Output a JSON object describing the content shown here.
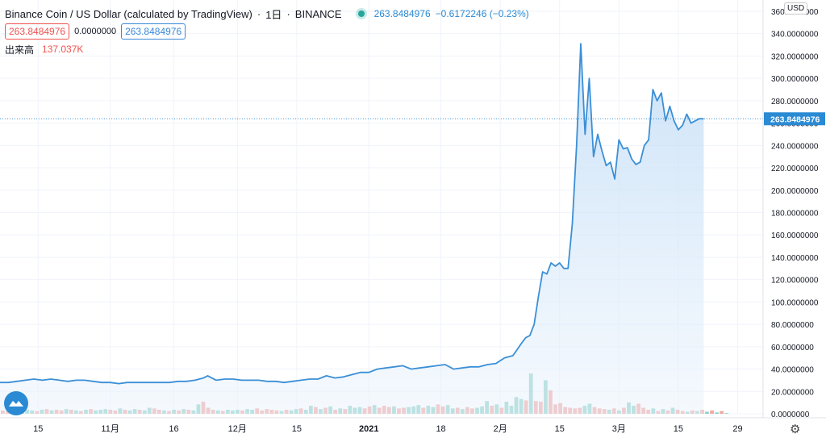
{
  "header": {
    "title": "Binance Coin / US Dollar (calculated by TradingView)",
    "interval": "1日",
    "exchange": "BINANCE",
    "last_price": "263.8484976",
    "change": "−0.6172246 (−0.23%)",
    "sell_price": "263.8484976",
    "spread": "0.0000000",
    "buy_price": "263.8484976",
    "volume_label": "出来高",
    "volume_value": "137.037K"
  },
  "currency": "USD",
  "price_marker": "263.8484976",
  "colors": {
    "line": "#3b8fd6",
    "fill": "#d6e8f8",
    "vol_up": "#8fd0c8",
    "vol_down": "#f2a7a4",
    "up_text": "#2a8ad4",
    "down_text": "#ef5350"
  },
  "icons": {
    "logo": "tradingview-logo-icon",
    "settings": "gear-icon",
    "status": "status-dot-icon"
  },
  "chart_data": {
    "type": "area",
    "ylim": [
      0,
      360
    ],
    "y_ticks": [
      "360.0000000",
      "340.0000000",
      "320.0000000",
      "300.0000000",
      "280.0000000",
      "260.0000000",
      "240.0000000",
      "220.0000000",
      "200.0000000",
      "180.0000000",
      "160.0000000",
      "140.0000000",
      "120.0000000",
      "100.0000000",
      "80.0000000",
      "60.0000000",
      "40.0000000",
      "20.0000000",
      "0.0000000"
    ],
    "y_tick_values": [
      360,
      340,
      320,
      300,
      280,
      260,
      240,
      220,
      200,
      180,
      160,
      140,
      120,
      100,
      80,
      60,
      40,
      20,
      0
    ],
    "x_ticks": [
      {
        "label": "15",
        "date": "2020-10-15"
      },
      {
        "label": "11月",
        "date": "2020-11-01"
      },
      {
        "label": "16",
        "date": "2020-11-16"
      },
      {
        "label": "12月",
        "date": "2020-12-01"
      },
      {
        "label": "15",
        "date": "2020-12-15"
      },
      {
        "label": "2021",
        "date": "2021-01-01"
      },
      {
        "label": "18",
        "date": "2021-01-18"
      },
      {
        "label": "2月",
        "date": "2021-02-01"
      },
      {
        "label": "15",
        "date": "2021-02-15"
      },
      {
        "label": "3月",
        "date": "2021-03-01"
      },
      {
        "label": "15",
        "date": "2021-03-15"
      },
      {
        "label": "29",
        "date": "2021-03-29"
      }
    ],
    "x_range": [
      "2020-10-06",
      "2021-04-04"
    ],
    "series": [
      {
        "points": [
          [
            "2020-10-06",
            28
          ],
          [
            "2020-10-08",
            28
          ],
          [
            "2020-10-10",
            29
          ],
          [
            "2020-10-12",
            30
          ],
          [
            "2020-10-14",
            31
          ],
          [
            "2020-10-16",
            30
          ],
          [
            "2020-10-18",
            31
          ],
          [
            "2020-10-20",
            30
          ],
          [
            "2020-10-22",
            29
          ],
          [
            "2020-10-24",
            30
          ],
          [
            "2020-10-26",
            30
          ],
          [
            "2020-10-28",
            29
          ],
          [
            "2020-10-30",
            28
          ],
          [
            "2020-11-01",
            28
          ],
          [
            "2020-11-03",
            27
          ],
          [
            "2020-11-05",
            28
          ],
          [
            "2020-11-07",
            28
          ],
          [
            "2020-11-09",
            28
          ],
          [
            "2020-11-11",
            28
          ],
          [
            "2020-11-13",
            28
          ],
          [
            "2020-11-15",
            28
          ],
          [
            "2020-11-17",
            29
          ],
          [
            "2020-11-19",
            29
          ],
          [
            "2020-11-21",
            30
          ],
          [
            "2020-11-23",
            32
          ],
          [
            "2020-11-24",
            34
          ],
          [
            "2020-11-26",
            30
          ],
          [
            "2020-11-28",
            31
          ],
          [
            "2020-11-30",
            31
          ],
          [
            "2020-12-02",
            30
          ],
          [
            "2020-12-04",
            30
          ],
          [
            "2020-12-06",
            30
          ],
          [
            "2020-12-08",
            29
          ],
          [
            "2020-12-10",
            29
          ],
          [
            "2020-12-12",
            28
          ],
          [
            "2020-12-14",
            29
          ],
          [
            "2020-12-16",
            30
          ],
          [
            "2020-12-18",
            31
          ],
          [
            "2020-12-20",
            31
          ],
          [
            "2020-12-22",
            34
          ],
          [
            "2020-12-24",
            32
          ],
          [
            "2020-12-26",
            33
          ],
          [
            "2020-12-28",
            35
          ],
          [
            "2020-12-30",
            37
          ],
          [
            "2021-01-01",
            37
          ],
          [
            "2021-01-03",
            40
          ],
          [
            "2021-01-05",
            41
          ],
          [
            "2021-01-07",
            42
          ],
          [
            "2021-01-09",
            43
          ],
          [
            "2021-01-11",
            40
          ],
          [
            "2021-01-13",
            41
          ],
          [
            "2021-01-15",
            42
          ],
          [
            "2021-01-17",
            43
          ],
          [
            "2021-01-19",
            44
          ],
          [
            "2021-01-21",
            40
          ],
          [
            "2021-01-23",
            41
          ],
          [
            "2021-01-25",
            42
          ],
          [
            "2021-01-27",
            42
          ],
          [
            "2021-01-29",
            44
          ],
          [
            "2021-01-31",
            45
          ],
          [
            "2021-02-02",
            50
          ],
          [
            "2021-02-04",
            52
          ],
          [
            "2021-02-06",
            63
          ],
          [
            "2021-02-07",
            68
          ],
          [
            "2021-02-08",
            70
          ],
          [
            "2021-02-09",
            80
          ],
          [
            "2021-02-10",
            105
          ],
          [
            "2021-02-11",
            127
          ],
          [
            "2021-02-12",
            125
          ],
          [
            "2021-02-13",
            135
          ],
          [
            "2021-02-14",
            132
          ],
          [
            "2021-02-15",
            135
          ],
          [
            "2021-02-16",
            130
          ],
          [
            "2021-02-17",
            130
          ],
          [
            "2021-02-18",
            170
          ],
          [
            "2021-02-19",
            240
          ],
          [
            "2021-02-20",
            331
          ],
          [
            "2021-02-21",
            250
          ],
          [
            "2021-02-22",
            300
          ],
          [
            "2021-02-23",
            230
          ],
          [
            "2021-02-24",
            250
          ],
          [
            "2021-02-25",
            235
          ],
          [
            "2021-02-26",
            222
          ],
          [
            "2021-02-27",
            225
          ],
          [
            "2021-02-28",
            210
          ],
          [
            "2021-03-01",
            245
          ],
          [
            "2021-03-02",
            237
          ],
          [
            "2021-03-03",
            238
          ],
          [
            "2021-03-04",
            228
          ],
          [
            "2021-03-05",
            223
          ],
          [
            "2021-03-06",
            225
          ],
          [
            "2021-03-07",
            240
          ],
          [
            "2021-03-08",
            245
          ],
          [
            "2021-03-09",
            290
          ],
          [
            "2021-03-10",
            280
          ],
          [
            "2021-03-11",
            287
          ],
          [
            "2021-03-12",
            262
          ],
          [
            "2021-03-13",
            275
          ],
          [
            "2021-03-14",
            262
          ],
          [
            "2021-03-15",
            254
          ],
          [
            "2021-03-16",
            258
          ],
          [
            "2021-03-17",
            268
          ],
          [
            "2021-03-18",
            260
          ],
          [
            "2021-03-19",
            262
          ],
          [
            "2021-03-20",
            264
          ],
          [
            "2021-03-21",
            263.85
          ]
        ]
      }
    ],
    "volume": [
      5,
      4,
      6,
      5,
      7,
      6,
      5,
      4,
      6,
      7,
      5,
      6,
      5,
      7,
      6,
      5,
      4,
      6,
      7,
      5,
      6,
      7,
      6,
      5,
      8,
      6,
      5,
      7,
      6,
      5,
      9,
      8,
      6,
      5,
      4,
      6,
      5,
      7,
      6,
      5,
      14,
      18,
      9,
      6,
      5,
      4,
      6,
      5,
      6,
      5,
      7,
      6,
      8,
      5,
      7,
      6,
      5,
      4,
      6,
      5,
      7,
      8,
      6,
      12,
      10,
      7,
      9,
      11,
      6,
      8,
      7,
      12,
      9,
      10,
      8,
      11,
      13,
      9,
      12,
      10,
      11,
      8,
      9,
      10,
      11,
      13,
      9,
      12,
      10,
      14,
      11,
      13,
      8,
      9,
      7,
      10,
      8,
      9,
      11,
      19,
      12,
      14,
      9,
      18,
      12,
      25,
      22,
      20,
      60,
      19,
      18,
      50,
      35,
      14,
      16,
      10,
      9,
      8,
      9,
      12,
      15,
      10,
      8,
      7,
      6,
      8,
      5,
      9,
      17,
      12,
      15,
      9,
      6,
      8,
      4,
      7,
      5,
      9,
      6,
      4,
      3,
      5,
      4,
      6,
      3,
      5,
      2,
      4,
      1
    ],
    "volume_dir": [
      0,
      0,
      1,
      1,
      0,
      1,
      1,
      0,
      1,
      0,
      1,
      0,
      0,
      1,
      0,
      1,
      0,
      1,
      0,
      1,
      1,
      1,
      0,
      0,
      1,
      0,
      1,
      1,
      0,
      1,
      1,
      0,
      0,
      1,
      0,
      1,
      0,
      1,
      0,
      1,
      1,
      0,
      0,
      0,
      1,
      0,
      1,
      1,
      1,
      0,
      1,
      1,
      0,
      0,
      0,
      0,
      0,
      1,
      0,
      1,
      1,
      0,
      1,
      1,
      0,
      1,
      0,
      1,
      0,
      1,
      0,
      1,
      1,
      1,
      0,
      0,
      1,
      0,
      0,
      0,
      1,
      0,
      0,
      1,
      1,
      1,
      0,
      1,
      1,
      0,
      0,
      1,
      1,
      0,
      1,
      0,
      0,
      1,
      1,
      1,
      0,
      1,
      0,
      1,
      1,
      1,
      1,
      0,
      1,
      0,
      0,
      1,
      0,
      0,
      0,
      0,
      0,
      0,
      0,
      1,
      1,
      0,
      0,
      0,
      1,
      0,
      1,
      0,
      1,
      1,
      0,
      0,
      0,
      1,
      0,
      1,
      0,
      1,
      0,
      0,
      1,
      0,
      1,
      0,
      1,
      0,
      1,
      0,
      1
    ],
    "vol_ylim": [
      0,
      160
    ],
    "last_value": 263.8484976
  }
}
